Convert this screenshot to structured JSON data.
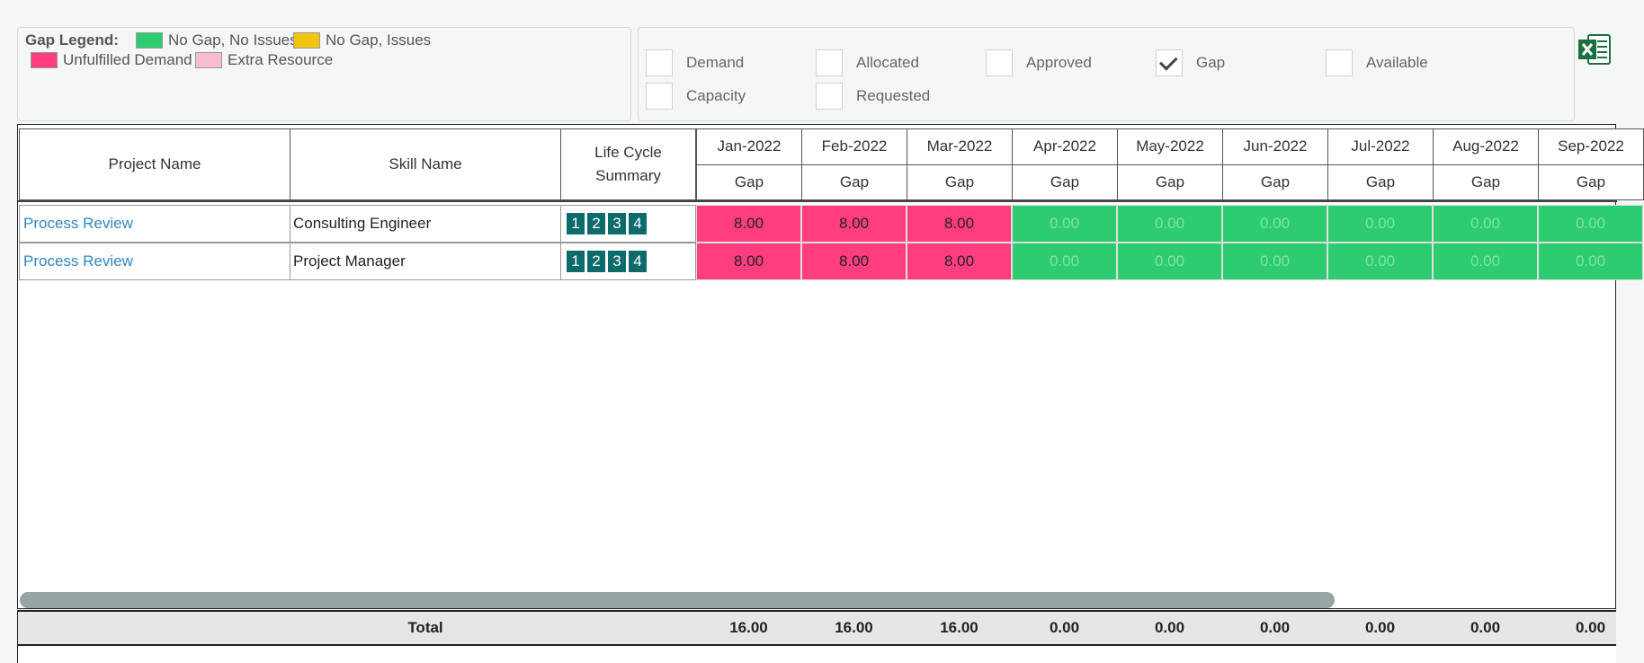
{
  "legend": {
    "title": "Gap Legend:",
    "items": [
      {
        "label": "No Gap, No Issues",
        "color": "#2ecc71"
      },
      {
        "label": "No Gap, Issues",
        "color": "#f1c40f"
      },
      {
        "label": "Unfulfilled Demand",
        "color": "#ff3d7f"
      },
      {
        "label": "Extra Resource",
        "color": "#f8bbd0"
      }
    ]
  },
  "filters": [
    {
      "label": "Demand",
      "checked": false
    },
    {
      "label": "Allocated",
      "checked": false
    },
    {
      "label": "Approved",
      "checked": false
    },
    {
      "label": "Gap",
      "checked": true
    },
    {
      "label": "Available",
      "checked": false
    },
    {
      "label": "Capacity",
      "checked": false
    },
    {
      "label": "Requested",
      "checked": false
    }
  ],
  "export_icon": "excel-icon",
  "table": {
    "headers": {
      "project": "Project Name",
      "skill": "Skill Name",
      "lifecycle": "Life Cycle Summary",
      "sub_label": "Gap",
      "months": [
        "Jan-2022",
        "Feb-2022",
        "Mar-2022",
        "Apr-2022",
        "May-2022",
        "Jun-2022",
        "Jul-2022",
        "Aug-2022",
        "Sep-2022"
      ]
    },
    "rows": [
      {
        "project": "Process Review",
        "skill": "Consulting Engineer",
        "phases": [
          "1",
          "2",
          "3",
          "4"
        ],
        "values": [
          "8.00",
          "8.00",
          "8.00",
          "0.00",
          "0.00",
          "0.00",
          "0.00",
          "0.00",
          "0.00"
        ]
      },
      {
        "project": "Process Review",
        "skill": "Project Manager",
        "phases": [
          "1",
          "2",
          "3",
          "4"
        ],
        "values": [
          "8.00",
          "8.00",
          "8.00",
          "0.00",
          "0.00",
          "0.00",
          "0.00",
          "0.00",
          "0.00"
        ]
      }
    ],
    "total": {
      "label": "Total",
      "values": [
        "16.00",
        "16.00",
        "16.00",
        "0.00",
        "0.00",
        "0.00",
        "0.00",
        "0.00",
        "0.00"
      ]
    }
  },
  "colors": {
    "gap": "#ff3d7f",
    "no_gap": "#2ecc71",
    "phase_badge": "#0e6b6b",
    "link": "#2e86c1"
  }
}
